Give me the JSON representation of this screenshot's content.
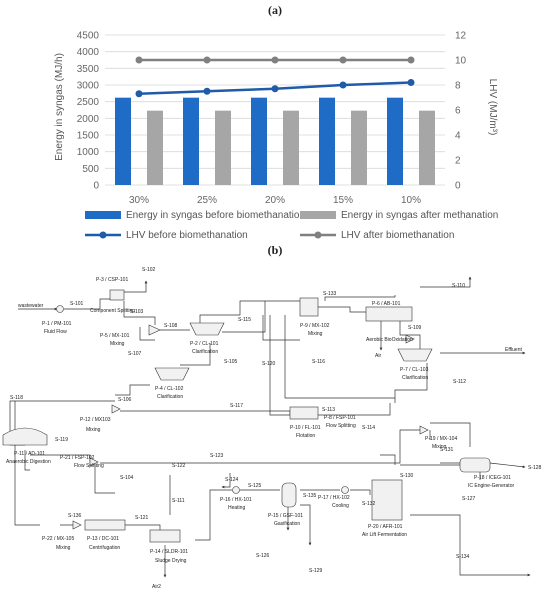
{
  "panels": {
    "a": "(a)",
    "b": "(b)"
  },
  "chart_data": {
    "type": "bar",
    "categories": [
      "30%",
      "25%",
      "20%",
      "15%",
      "10%"
    ],
    "series": [
      {
        "name": "Energy in syngas before biomethanation",
        "kind": "bar",
        "axis": "left",
        "color": "#1f6cc7",
        "values": [
          2620,
          2620,
          2620,
          2620,
          2620
        ]
      },
      {
        "name": "Energy in syngas after methanation",
        "kind": "bar",
        "axis": "left",
        "color": "#a6a6a6",
        "values": [
          2230,
          2230,
          2230,
          2230,
          2230
        ]
      },
      {
        "name": "LHV before biomethanation",
        "kind": "line",
        "axis": "right",
        "color": "#1f5ba8",
        "values": [
          7.3,
          7.5,
          7.7,
          8.0,
          8.2
        ]
      },
      {
        "name": "LHV after biomethanation",
        "kind": "line",
        "axis": "right",
        "color": "#808080",
        "values": [
          10.0,
          10.0,
          10.0,
          10.0,
          10.0
        ]
      }
    ],
    "ylabel": "Energy in syngas (MJ/h)",
    "y2label": "LHV (MJ/m³)",
    "ylim": [
      0,
      4500
    ],
    "y2lim": [
      0,
      12
    ],
    "yticks": [
      "0",
      "500",
      "1000",
      "1500",
      "2000",
      "2500",
      "3000",
      "3500",
      "4000",
      "4500"
    ],
    "y2ticks": [
      "0",
      "2",
      "4",
      "6",
      "8",
      "10",
      "12"
    ],
    "grid": true,
    "legend": "bottom"
  },
  "flowsheet": {
    "units": [
      {
        "id": "P-1 / PM-101",
        "sub": "Fluid Flow"
      },
      {
        "id": "P-3 / CSP-101",
        "sub": "Component Splitting"
      },
      {
        "id": "P-5 / MX-101",
        "sub": "Mixing"
      },
      {
        "id": "P-2 / CL-101",
        "sub": "Clarification"
      },
      {
        "id": "P-4 / CL-102",
        "sub": "Clarification"
      },
      {
        "id": "P-9 / MX-102",
        "sub": "Mixing"
      },
      {
        "id": "P-6 / AB-101",
        "sub": "Aerobic BioOxidation"
      },
      {
        "id": "P-7 / CL-103",
        "sub": "Clarification"
      },
      {
        "id": "P-8 / FSP-101",
        "sub": "Flow Splitting"
      },
      {
        "id": "P-10 / FL-101",
        "sub": "Flotation"
      },
      {
        "id": "P-12 / MX103",
        "sub": "Mixing"
      },
      {
        "id": "P-11 / AD-101",
        "sub": "Anaerobic Digestion"
      },
      {
        "id": "P-21 / FSP-102",
        "sub": "Flow Splitting"
      },
      {
        "id": "P-19 / MX-104",
        "sub": "Mixing"
      },
      {
        "id": "P-18 / ICEG-101",
        "sub": "IC Engine-Generator"
      },
      {
        "id": "P-22 / MX-105",
        "sub": "Mixing"
      },
      {
        "id": "P-13 / DC-101",
        "sub": "Centrifugation"
      },
      {
        "id": "P-14 / SLDR-101",
        "sub": "Sludge Drying"
      },
      {
        "id": "P-16 / HX-101",
        "sub": "Heating"
      },
      {
        "id": "P-15 / GSF-101",
        "sub": "Gasification"
      },
      {
        "id": "P-17 / HX-102",
        "sub": "Cooling"
      },
      {
        "id": "P-20 / AFR-101",
        "sub": "Air Lift Fermentation"
      }
    ],
    "labels": {
      "wastewater": "wastewater",
      "air": "Air",
      "air2": "Air2",
      "effluent": "Effluent",
      "s101": "S-101",
      "s102": "S-102",
      "s103": "S-103",
      "s104": "S-104",
      "s105": "S-105",
      "s106": "S-106",
      "s107": "S-107",
      "s108": "S-108",
      "s109": "S-109",
      "s110": "S-110",
      "s111": "S-111",
      "s112": "S-112",
      "s113": "S-113",
      "s114": "S-114",
      "s115": "S-115",
      "s116": "S-116",
      "s117": "S-117",
      "s118": "S-118",
      "s119": "S-119",
      "s120": "S-120",
      "s121": "S-121",
      "s122": "S-122",
      "s123": "S-123",
      "s124": "S-124",
      "s125": "S-125",
      "s126": "S-126",
      "s127": "S-127",
      "s128": "S-128",
      "s129": "S-129",
      "s130": "S-130",
      "s131": "S-131",
      "s132": "S-132",
      "s133": "S-133",
      "s134": "S-134",
      "s135": "S-135",
      "s136": "S-136"
    }
  }
}
